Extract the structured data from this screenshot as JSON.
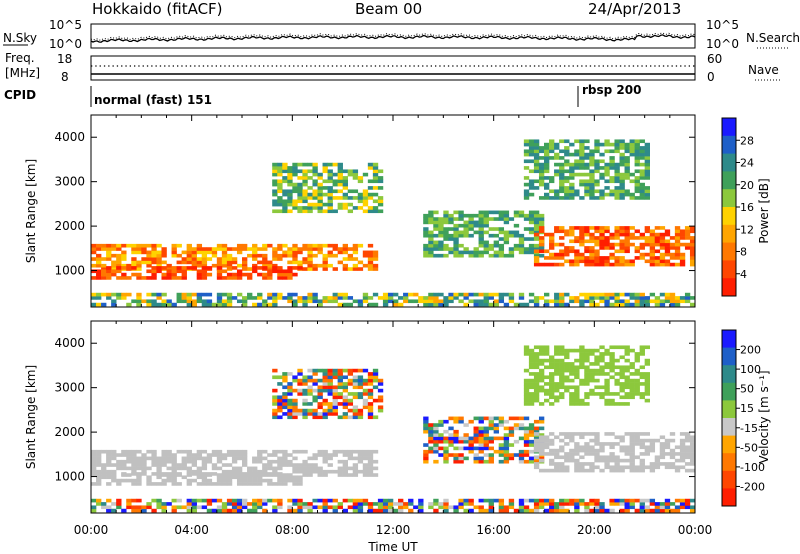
{
  "header": {
    "station": "Hokkaido (fitACF)",
    "beam": "Beam 00",
    "date": "24/Apr/2013"
  },
  "top_panel": {
    "left_label": "N.Sky",
    "left_ticks": [
      "10^5",
      "10^0"
    ],
    "right_label": "N.Search",
    "right_ticks": [
      "10^5",
      "10^0"
    ]
  },
  "freq_panel": {
    "left_label_1": "Freq.",
    "left_label_2": "[MHz]",
    "left_ticks": [
      "18",
      "8"
    ],
    "right_label": "Nave",
    "right_ticks": [
      "60",
      "0"
    ]
  },
  "cpid_panel": {
    "label": "CPID",
    "mode_1": "normal (fast) 151",
    "mode_2": "rbsp 200"
  },
  "colors": {
    "scale_power": [
      "#1a1aff",
      "#1e5fc8",
      "#2e8a8a",
      "#3fa05a",
      "#8cc83c",
      "#ffd200",
      "#ffa500",
      "#ff7800",
      "#ff4600",
      "#ff1e00"
    ],
    "scale_velocity": [
      "#1a1aff",
      "#1e5fc8",
      "#2e8a8a",
      "#3fa05a",
      "#8cc83c",
      "#c8c8c8",
      "#ffa500",
      "#ff7800",
      "#ff4600",
      "#ff1e00"
    ],
    "ground_scatter": "#c0c0c0"
  },
  "chart_data": [
    {
      "type": "heatmap",
      "name": "power",
      "xlabel": "",
      "ylabel": "Slant Range [km]",
      "x_ticks": [
        "00:00",
        "04:00",
        "08:00",
        "12:00",
        "16:00",
        "20:00",
        "00:00"
      ],
      "y_ticks": [
        1000,
        2000,
        3000,
        4000
      ],
      "ylim": [
        180,
        4500
      ],
      "colorbar_label": "Power [dB]",
      "colorbar_ticks": [
        "28",
        "24",
        "20",
        "16",
        "12",
        "8",
        "4"
      ],
      "clim": [
        0,
        30
      ]
    },
    {
      "type": "heatmap",
      "name": "velocity",
      "xlabel": "Time UT",
      "ylabel": "Slant Range [km]",
      "x_ticks": [
        "00:00",
        "04:00",
        "08:00",
        "12:00",
        "16:00",
        "20:00",
        "00:00"
      ],
      "y_ticks": [
        1000,
        2000,
        3000,
        4000
      ],
      "ylim": [
        180,
        4500
      ],
      "colorbar_label": "Velocity [m s⁻¹]",
      "colorbar_ticks": [
        "200",
        "100",
        "50",
        "15",
        "-15",
        "-50",
        "-100",
        "-200"
      ],
      "clim": [
        -250,
        250
      ]
    }
  ]
}
